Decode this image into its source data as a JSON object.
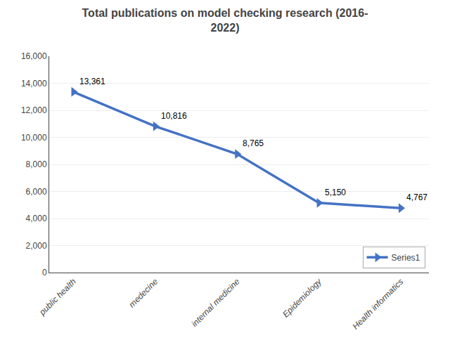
{
  "chart_data": {
    "type": "line",
    "title": "Total publications on model checking research (2016-\n2022)",
    "categories": [
      "public health",
      "medecine",
      "internal medicine",
      "Epidemiology",
      "Health informatics"
    ],
    "series": [
      {
        "name": "Series1",
        "color": "#4472C4",
        "marker": "triangle-right",
        "values": [
          13361,
          10816,
          8765,
          5150,
          4767
        ],
        "value_labels": [
          "13,361",
          "10,816",
          "8,765",
          "5,150",
          "4,767"
        ]
      }
    ],
    "data_labels": true,
    "ylim": [
      0,
      16000
    ],
    "yticks": [
      0,
      {
        "value": 2000,
        "label": "2,000"
      },
      {
        "value": 4000,
        "label": "4,000"
      },
      {
        "value": 6000,
        "label": "6,000"
      },
      {
        "value": 8000,
        "label": "8,000"
      },
      {
        "value": 10000,
        "label": "10,000"
      },
      {
        "value": 12000,
        "label": "12,000"
      },
      {
        "value": 14000,
        "label": "14,000"
      },
      {
        "value": 16000,
        "label": "16,000"
      }
    ],
    "grid": true,
    "legend": "lower right"
  }
}
